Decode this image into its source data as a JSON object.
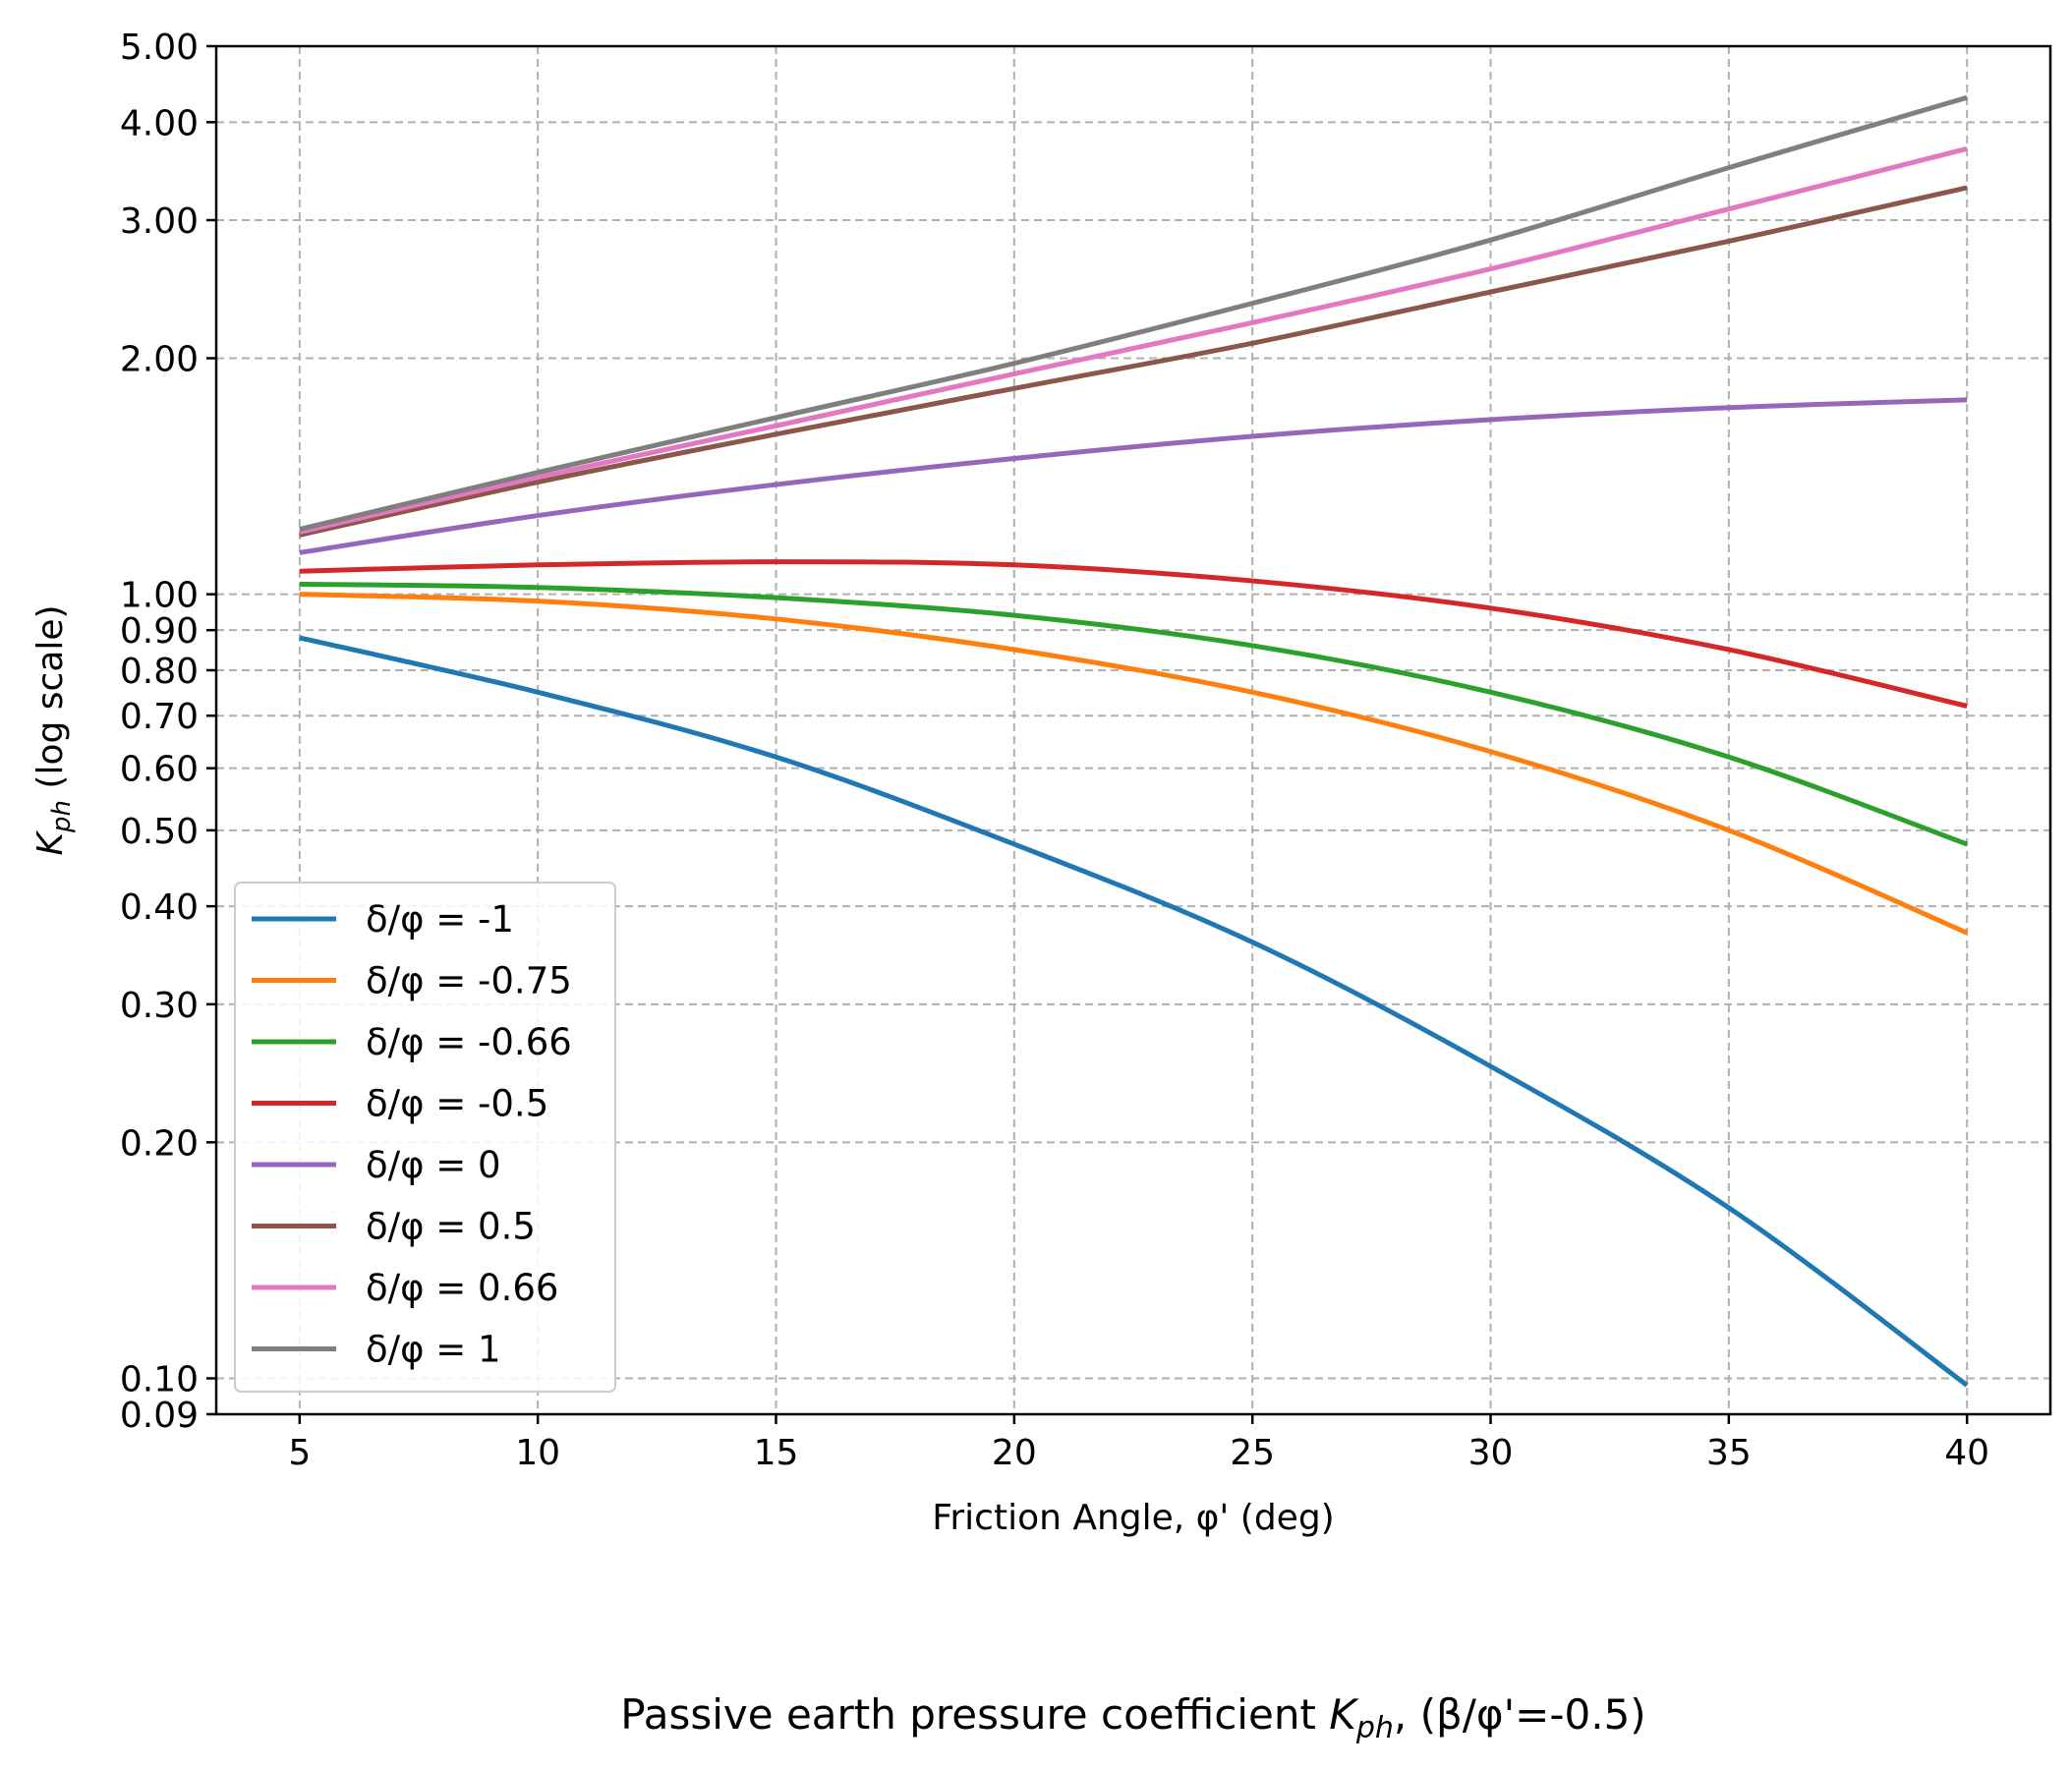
{
  "chart_data": {
    "type": "line",
    "title": "Passive earth pressure coefficient",
    "title_symbol": "K",
    "title_subscript": "ph",
    "title_suffix": ", (β/φ'=-0.5)",
    "xlabel": "Friction Angle, φ' (deg)",
    "ylabel_symbol": "K",
    "ylabel_subscript": "ph",
    "ylabel_suffix": " (log scale)",
    "yscale": "log",
    "xlim": [
      3.25,
      41.75
    ],
    "ylim": [
      0.09,
      5.0
    ],
    "x_ticks": [
      "5",
      "10",
      "15",
      "20",
      "25",
      "30",
      "35",
      "40"
    ],
    "x_tick_values": [
      5,
      10,
      15,
      20,
      25,
      30,
      35,
      40
    ],
    "y_ticks": [
      "0.09",
      "0.10",
      "0.20",
      "0.30",
      "0.40",
      "0.50",
      "0.60",
      "0.70",
      "0.80",
      "0.90",
      "1.00",
      "2.00",
      "3.00",
      "4.00",
      "5.00"
    ],
    "y_tick_values": [
      0.09,
      0.1,
      0.2,
      0.3,
      0.4,
      0.5,
      0.6,
      0.7,
      0.8,
      0.9,
      1.0,
      2.0,
      3.0,
      4.0,
      5.0
    ],
    "grid": true,
    "legend_position": "lower-left",
    "x": [
      5,
      10,
      15,
      20,
      25,
      30,
      35,
      40
    ],
    "series": [
      {
        "name": "δ/φ = -1",
        "color": "#1f77b4",
        "values": [
          0.88,
          0.75,
          0.62,
          0.48,
          0.36,
          0.25,
          0.165,
          0.098
        ]
      },
      {
        "name": "δ/φ = -0.75",
        "color": "#ff7f0e",
        "values": [
          1.0,
          0.98,
          0.93,
          0.85,
          0.75,
          0.63,
          0.5,
          0.37
        ]
      },
      {
        "name": "δ/φ = -0.66",
        "color": "#2ca02c",
        "values": [
          1.03,
          1.02,
          0.99,
          0.94,
          0.86,
          0.75,
          0.62,
          0.48
        ]
      },
      {
        "name": "δ/φ = -0.5",
        "color": "#d62728",
        "values": [
          1.07,
          1.09,
          1.1,
          1.09,
          1.04,
          0.96,
          0.85,
          0.72
        ]
      },
      {
        "name": "δ/φ = 0",
        "color": "#9467bd",
        "values": [
          1.13,
          1.26,
          1.38,
          1.49,
          1.59,
          1.67,
          1.73,
          1.77
        ]
      },
      {
        "name": "δ/φ = 0.5",
        "color": "#8c564b",
        "values": [
          1.19,
          1.39,
          1.6,
          1.83,
          2.09,
          2.43,
          2.82,
          3.3
        ]
      },
      {
        "name": "δ/φ = 0.66",
        "color": "#e377c2",
        "values": [
          1.2,
          1.41,
          1.64,
          1.91,
          2.22,
          2.6,
          3.1,
          3.7
        ]
      },
      {
        "name": "δ/φ = 1",
        "color": "#7f7f7f",
        "values": [
          1.21,
          1.43,
          1.68,
          1.97,
          2.35,
          2.83,
          3.5,
          4.3
        ]
      }
    ]
  }
}
